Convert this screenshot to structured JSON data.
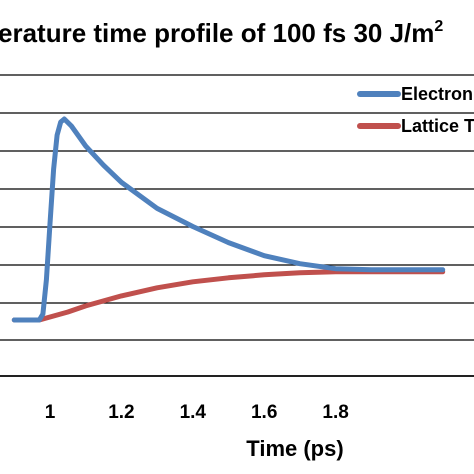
{
  "chart_data": {
    "type": "line",
    "title": "erature time profile of 100 fs 30 J/m",
    "title_superscript": "2",
    "xlabel": "Time (ps)",
    "ylabel": "",
    "xlim": [
      0.9,
      2.1
    ],
    "x_ticks": [
      "1",
      "1.2",
      "1.4",
      "1.6",
      "1.8"
    ],
    "grid": true,
    "legend_placement": "top-right",
    "series": [
      {
        "name": "Electron",
        "color": "#4F81BD",
        "x": [
          0.9,
          0.97,
          0.98,
          0.99,
          1.0,
          1.01,
          1.02,
          1.03,
          1.04,
          1.06,
          1.08,
          1.1,
          1.15,
          1.2,
          1.3,
          1.4,
          1.5,
          1.6,
          1.7,
          1.8,
          1.9,
          2.0,
          2.1
        ],
        "y": [
          0,
          0,
          0.03,
          0.2,
          0.48,
          0.75,
          0.92,
          0.985,
          1.0,
          0.965,
          0.915,
          0.865,
          0.77,
          0.685,
          0.555,
          0.465,
          0.385,
          0.32,
          0.28,
          0.255,
          0.25,
          0.25,
          0.25
        ]
      },
      {
        "name": "Lattice T",
        "color": "#C0504D",
        "x": [
          0.9,
          0.97,
          1.0,
          1.05,
          1.1,
          1.2,
          1.3,
          1.4,
          1.5,
          1.6,
          1.7,
          1.8,
          1.9,
          2.0,
          2.1
        ],
        "y": [
          0,
          0,
          0.015,
          0.04,
          0.07,
          0.12,
          0.16,
          0.19,
          0.21,
          0.225,
          0.235,
          0.24,
          0.24,
          0.24,
          0.24
        ]
      }
    ]
  }
}
